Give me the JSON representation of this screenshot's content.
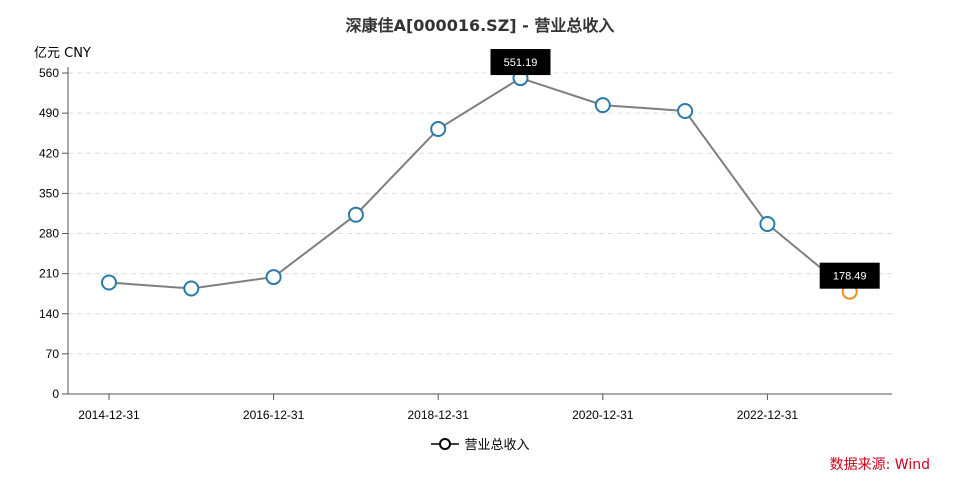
{
  "title": "深康佳A[000016.SZ] - 营业总收入",
  "unit_label": "亿元  CNY",
  "legend": {
    "label": "营业总收入"
  },
  "source": "数据来源: Wind",
  "colors": {
    "line": "#7f7f7f",
    "marker": "#2a7aa8",
    "marker_last": "#f28c1e",
    "grid": "#dddddd",
    "axis": "#555555",
    "tooltip_bg": "#000000"
  },
  "tooltips": [
    {
      "index": 5,
      "text": "551.19"
    },
    {
      "index": 9,
      "text": "178.49"
    }
  ],
  "chart_data": {
    "type": "line",
    "title": "深康佳A[000016.SZ] - 营业总收入",
    "xlabel": "",
    "ylabel": "亿元 CNY",
    "ylim": [
      0,
      560
    ],
    "yticks": [
      0,
      70,
      140,
      210,
      280,
      350,
      420,
      490,
      560
    ],
    "xtick_labels": [
      "2014-12-31",
      "2016-12-31",
      "2018-12-31",
      "2020-12-31",
      "2022-12-31"
    ],
    "grid": true,
    "legend_position": "bottom",
    "x": [
      "2014-12-31",
      "2015-12-31",
      "2016-12-31",
      "2017-12-31",
      "2018-12-31",
      "2019-12-31",
      "2020-12-31",
      "2021-12-31",
      "2022-12-31",
      "2023-12-31"
    ],
    "series": [
      {
        "name": "营业总收入",
        "values": [
          194.5,
          184.0,
          204.0,
          312.8,
          462.3,
          551.19,
          504.0,
          493.7,
          296.6,
          178.49
        ]
      }
    ]
  }
}
